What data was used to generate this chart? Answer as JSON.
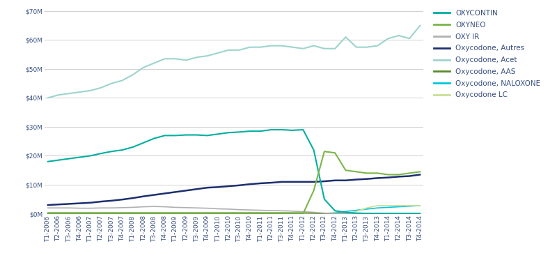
{
  "ylim": [
    0,
    70000000
  ],
  "yticks": [
    0,
    10000000,
    20000000,
    30000000,
    40000000,
    50000000,
    60000000,
    70000000
  ],
  "ytick_labels": [
    "$0M",
    "$10M",
    "$20M",
    "$30M",
    "$40M",
    "$50M",
    "$60M",
    "$70M"
  ],
  "x_labels": [
    "T1-2006",
    "T2-2006",
    "T3-2006",
    "T4-2006",
    "T1-2007",
    "T2-2007",
    "T3-2007",
    "T4-2007",
    "T1-2008",
    "T2-2008",
    "T3-2008",
    "T4-2008",
    "T1-2009",
    "T2-2009",
    "T3-2009",
    "T4-2009",
    "T1-2010",
    "T2-2010",
    "T3-2010",
    "T4-2010",
    "T1-2011",
    "T2-2011",
    "T3-2011",
    "T4-2011",
    "T1-2012",
    "T2-2012",
    "T3-2012",
    "T4-2012",
    "T1-2013",
    "T2-2013",
    "T3-2013",
    "T4-2013",
    "T1-2014",
    "T2-2014",
    "T3-2014",
    "T4-2014"
  ],
  "series": {
    "OXYCONTIN": {
      "color": "#00afa0",
      "linewidth": 1.5,
      "values": [
        18000000,
        18500000,
        19000000,
        19500000,
        20000000,
        20800000,
        21500000,
        22000000,
        23000000,
        24500000,
        26000000,
        27000000,
        27000000,
        27200000,
        27200000,
        27000000,
        27500000,
        28000000,
        28200000,
        28500000,
        28500000,
        29000000,
        29000000,
        28800000,
        29000000,
        22000000,
        5000000,
        1000000,
        500000,
        200000,
        100000,
        100000,
        100000,
        100000,
        100000,
        100000
      ]
    },
    "OXYNEO": {
      "color": "#7ab648",
      "linewidth": 1.5,
      "values": [
        0,
        0,
        0,
        0,
        0,
        0,
        0,
        0,
        0,
        0,
        0,
        0,
        0,
        0,
        0,
        0,
        0,
        0,
        0,
        0,
        0,
        0,
        0,
        0,
        0,
        8000000,
        21500000,
        21000000,
        15000000,
        14500000,
        14000000,
        14000000,
        13500000,
        13500000,
        14000000,
        14500000
      ]
    },
    "OXY_IR": {
      "color": "#b0b0b0",
      "linewidth": 1.2,
      "values": [
        2000000,
        2000000,
        2000000,
        1900000,
        1900000,
        2000000,
        2000000,
        2100000,
        2200000,
        2400000,
        2500000,
        2400000,
        2200000,
        2100000,
        2000000,
        1900000,
        1700000,
        1600000,
        1400000,
        1300000,
        1200000,
        1100000,
        1000000,
        900000,
        700000,
        500000,
        200000,
        100000,
        100000,
        100000,
        100000,
        100000,
        100000,
        100000,
        100000,
        100000
      ]
    },
    "Oxycodone_Autres": {
      "color": "#1c2f6e",
      "linewidth": 1.8,
      "values": [
        3000000,
        3200000,
        3400000,
        3600000,
        3800000,
        4200000,
        4500000,
        4900000,
        5400000,
        6000000,
        6500000,
        7000000,
        7500000,
        8000000,
        8500000,
        9000000,
        9200000,
        9500000,
        9800000,
        10200000,
        10500000,
        10700000,
        11000000,
        11000000,
        11000000,
        11000000,
        11200000,
        11500000,
        11500000,
        11800000,
        12000000,
        12300000,
        12500000,
        12800000,
        13000000,
        13500000
      ]
    },
    "Oxycodone_Acet": {
      "color": "#9dd4cc",
      "linewidth": 1.5,
      "values": [
        40000000,
        41000000,
        41500000,
        42000000,
        42500000,
        43500000,
        45000000,
        46000000,
        48000000,
        50500000,
        52000000,
        53500000,
        53500000,
        53000000,
        54000000,
        54500000,
        55500000,
        56500000,
        56500000,
        57500000,
        57500000,
        58000000,
        58000000,
        57500000,
        57000000,
        58000000,
        57000000,
        57000000,
        61000000,
        57500000,
        57500000,
        58000000,
        60500000,
        61500000,
        60500000,
        65000000
      ]
    },
    "Oxycodone_AAS": {
      "color": "#5a8a2a",
      "linewidth": 1.2,
      "values": [
        300000,
        300000,
        300000,
        300000,
        300000,
        300000,
        300000,
        300000,
        300000,
        300000,
        300000,
        300000,
        300000,
        300000,
        300000,
        300000,
        300000,
        300000,
        300000,
        300000,
        300000,
        300000,
        300000,
        300000,
        300000,
        200000,
        100000,
        100000,
        100000,
        100000,
        100000,
        100000,
        100000,
        100000,
        100000,
        100000
      ]
    },
    "Oxycodone_NALOXONE": {
      "color": "#00c8e0",
      "linewidth": 1.2,
      "values": [
        0,
        0,
        0,
        0,
        0,
        0,
        0,
        0,
        0,
        0,
        0,
        0,
        0,
        0,
        0,
        0,
        0,
        0,
        0,
        0,
        0,
        0,
        0,
        0,
        0,
        0,
        100000,
        300000,
        800000,
        1200000,
        1600000,
        2000000,
        2200000,
        2400000,
        2600000,
        2800000
      ]
    },
    "Oxycodone_LC": {
      "color": "#c8e096",
      "linewidth": 1.2,
      "values": [
        0,
        0,
        0,
        0,
        0,
        0,
        0,
        0,
        0,
        0,
        0,
        0,
        0,
        0,
        0,
        0,
        0,
        0,
        0,
        0,
        0,
        0,
        0,
        0,
        0,
        0,
        0,
        0,
        0,
        800000,
        2000000,
        2800000,
        2800000,
        2800000,
        2800000,
        2800000
      ]
    }
  },
  "legend_entries": [
    {
      "label": "OXYCONTIN",
      "color": "#00afa0"
    },
    {
      "label": "OXYNEO",
      "color": "#7ab648"
    },
    {
      "label": "OXY IR",
      "color": "#b0b0b0"
    },
    {
      "label": "Oxycodone, Autres",
      "color": "#1c2f6e"
    },
    {
      "label": "Oxycodone, Acet",
      "color": "#9dd4cc"
    },
    {
      "label": "Oxycodone, AAS",
      "color": "#5a8a2a"
    },
    {
      "label": "Oxycodone, NALOXONE",
      "color": "#00c8e0"
    },
    {
      "label": "Oxycodone LC",
      "color": "#c8e096"
    }
  ],
  "background_color": "#ffffff",
  "grid_color": "#d0d0d0",
  "tick_label_fontsize": 6.5,
  "legend_fontsize": 7.5,
  "label_color": "#3a5080"
}
